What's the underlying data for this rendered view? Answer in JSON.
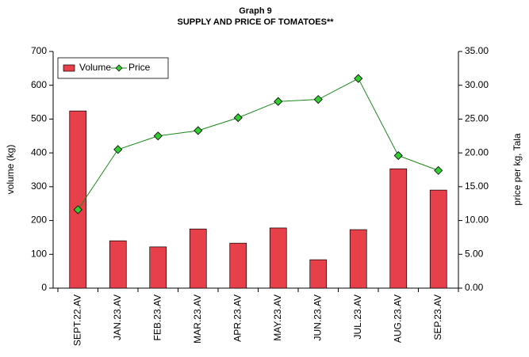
{
  "chart_data": {
    "type": "bar-line",
    "title": "Graph 9",
    "subtitle": "SUPPLY AND PRICE OF TOMATOES**",
    "ylabel": "volume (kg)",
    "y2label": "price per kg, Tala",
    "categories": [
      "SEPT.22.AV",
      "JAN.23.AV",
      "FEB.23.AV",
      "MAR.23.AV",
      "APR.23.AV",
      "MAY.23.AV",
      "JUN.23.AV",
      "JUL.23.AV",
      "AUG.23.AV",
      "SEP.23.AV"
    ],
    "series": [
      {
        "name": "Volume",
        "type": "bar",
        "color": "#e8404a",
        "values": [
          524,
          140,
          122,
          175,
          133,
          178,
          84,
          173,
          353,
          290
        ]
      },
      {
        "name": "Price",
        "type": "line",
        "axis": "y2",
        "color": "#1a8a1a",
        "marker_color": "#33cc33",
        "values": [
          11.6,
          20.5,
          22.5,
          23.3,
          25.2,
          27.6,
          27.9,
          31.0,
          19.6,
          17.4
        ]
      }
    ],
    "ylim": [
      0,
      700
    ],
    "yticks": [
      0,
      100,
      200,
      300,
      400,
      500,
      600,
      700
    ],
    "y2lim": [
      0,
      35
    ],
    "y2ticks": [
      {
        "value": 0,
        "label": "0.00"
      },
      {
        "value": 5,
        "label": "5.00"
      },
      {
        "value": 10,
        "label": "10.00"
      },
      {
        "value": 15,
        "label": "15.00"
      },
      {
        "value": 20,
        "label": "20.00"
      },
      {
        "value": 25,
        "label": "25.00"
      },
      {
        "value": 30,
        "label": "30.00"
      },
      {
        "value": 35,
        "label": "35.00"
      }
    ],
    "grid": false,
    "legend": "upper left"
  }
}
